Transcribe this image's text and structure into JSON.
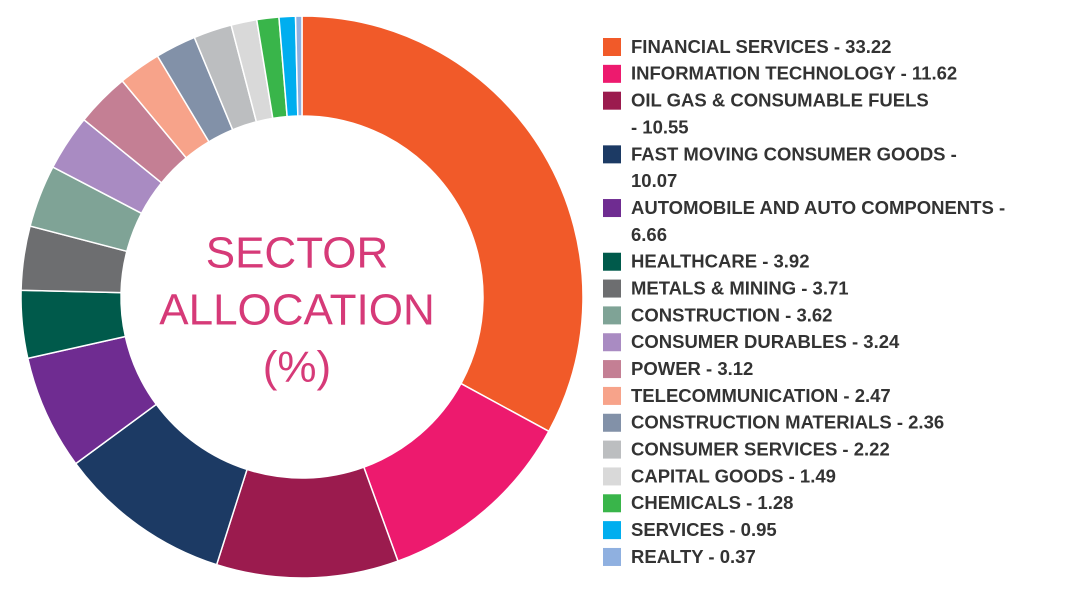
{
  "chart_data": {
    "type": "pie",
    "title": [
      "SECTOR",
      "ALLOCATION",
      "(%)"
    ],
    "labels": [
      [
        "FINANCIAL SERVICES - 33.22"
      ],
      [
        "INFORMATION TECHNOLOGY - 11.62"
      ],
      [
        "OIL GAS & CONSUMABLE FUELS",
        "- 10.55"
      ],
      [
        "FAST MOVING CONSUMER GOODS -",
        "10.07"
      ],
      [
        "AUTOMOBILE AND AUTO COMPONENTS -",
        "6.66"
      ],
      [
        "HEALTHCARE - 3.92"
      ],
      [
        "METALS & MINING - 3.71"
      ],
      [
        "CONSTRUCTION - 3.62"
      ],
      [
        "CONSUMER DURABLES - 3.24"
      ],
      [
        "POWER - 3.12"
      ],
      [
        "TELECOMMUNICATION - 2.47"
      ],
      [
        "CONSTRUCTION MATERIALS - 2.36"
      ],
      [
        "CONSUMER SERVICES - 2.22"
      ],
      [
        "CAPITAL GOODS -  1.49"
      ],
      [
        "CHEMICALS  - 1.28"
      ],
      [
        "SERVICES  - 0.95"
      ],
      [
        "REALTY  - 0.37"
      ]
    ],
    "values": [
      33.22,
      11.62,
      10.55,
      10.07,
      6.66,
      3.92,
      3.71,
      3.62,
      3.24,
      3.12,
      2.47,
      2.36,
      2.22,
      1.49,
      1.28,
      0.95,
      0.37
    ],
    "colors": [
      "#f15a29",
      "#ed1a6e",
      "#9b1b4e",
      "#1c3a64",
      "#6f2c91",
      "#005a4b",
      "#6d6e70",
      "#7fa396",
      "#a98bc2",
      "#c47f94",
      "#f7a38a",
      "#8291a8",
      "#bcbec0",
      "#d9d9d9",
      "#39b54a",
      "#00aeef",
      "#8fb0e0"
    ],
    "donut": true
  }
}
